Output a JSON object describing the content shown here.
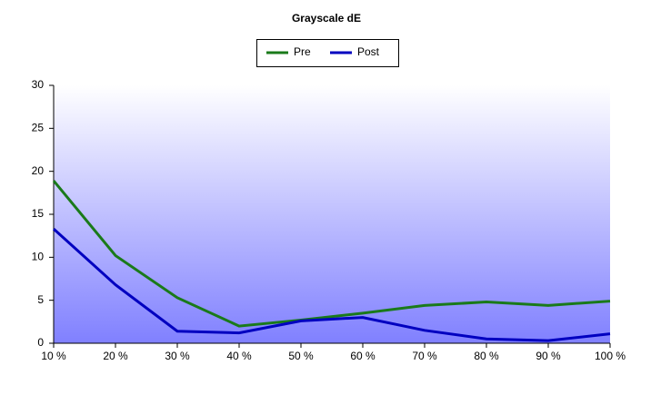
{
  "chart_data": {
    "type": "line",
    "title": "Grayscale dE",
    "categories": [
      "10 %",
      "20 %",
      "30 %",
      "40 %",
      "50 %",
      "60 %",
      "70 %",
      "80 %",
      "90 %",
      "100 %"
    ],
    "series": [
      {
        "name": "Pre",
        "color": "#1a7a1a",
        "values": [
          18.9,
          10.2,
          5.3,
          2.0,
          2.7,
          3.5,
          4.4,
          4.8,
          4.4,
          4.9
        ]
      },
      {
        "name": "Post",
        "color": "#0000c0",
        "values": [
          13.3,
          6.8,
          1.4,
          1.2,
          2.6,
          3.0,
          1.5,
          0.5,
          0.3,
          1.1
        ]
      }
    ],
    "ylim": [
      0,
      30
    ],
    "yticks": [
      0,
      5,
      10,
      15,
      20,
      25,
      30
    ]
  }
}
